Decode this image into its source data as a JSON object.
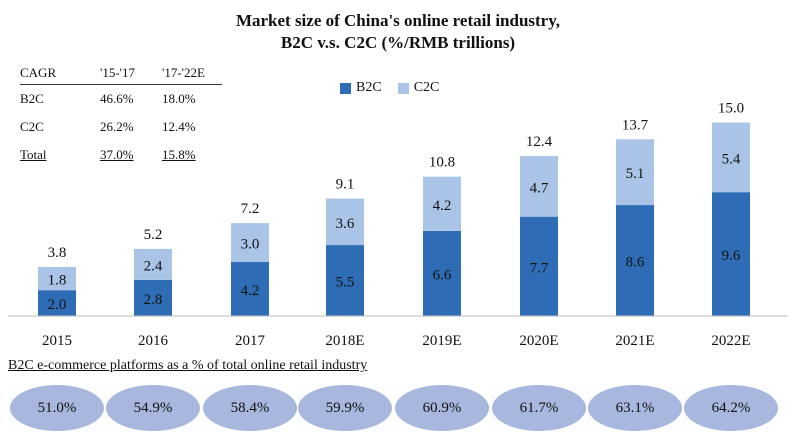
{
  "title_line1": "Market size of China's online retail industry,",
  "title_line2": "B2C v.s. C2C (%/RMB trillions)",
  "cagr": {
    "header": [
      "CAGR",
      "'15-'17",
      "'17-'22E"
    ],
    "rows": [
      [
        "B2C",
        "46.6%",
        "18.0%"
      ],
      [
        "C2C",
        "26.2%",
        "12.4%"
      ],
      [
        "Total",
        "37.0%",
        "15.8%"
      ]
    ]
  },
  "chart_data": {
    "type": "bar",
    "stacked": true,
    "categories": [
      "2015",
      "2016",
      "2017",
      "2018E",
      "2019E",
      "2020E",
      "2021E",
      "2022E"
    ],
    "series": [
      {
        "name": "B2C",
        "values": [
          2.0,
          2.8,
          4.2,
          5.5,
          6.6,
          7.7,
          8.6,
          9.6
        ],
        "color": "#2e6db5"
      },
      {
        "name": "C2C",
        "values": [
          1.8,
          2.4,
          3.0,
          3.6,
          4.2,
          4.7,
          5.1,
          5.4
        ],
        "color": "#a9c4e6"
      }
    ],
    "totals": [
      3.8,
      5.2,
      7.2,
      9.1,
      10.8,
      12.4,
      13.7,
      15.0
    ],
    "value_labels": {
      "B2C": [
        "2.0",
        "2.8",
        "4.2",
        "5.5",
        "6.6",
        "7.7",
        "8.6",
        "9.6"
      ],
      "C2C": [
        "1.8",
        "2.4",
        "3.0",
        "3.6",
        "4.2",
        "4.7",
        "5.1",
        "5.4"
      ],
      "Total": [
        "3.8",
        "5.2",
        "7.2",
        "9.1",
        "10.8",
        "12.4",
        "13.7",
        "15.0"
      ]
    },
    "legend_position": "top-center"
  },
  "b2c_share": {
    "title": "B2C e-commerce platforms as a % of total online retail industry",
    "values": [
      "51.0%",
      "54.9%",
      "58.4%",
      "59.9%",
      "60.9%",
      "61.7%",
      "63.1%",
      "64.2%"
    ],
    "color": "#a8b7de"
  }
}
